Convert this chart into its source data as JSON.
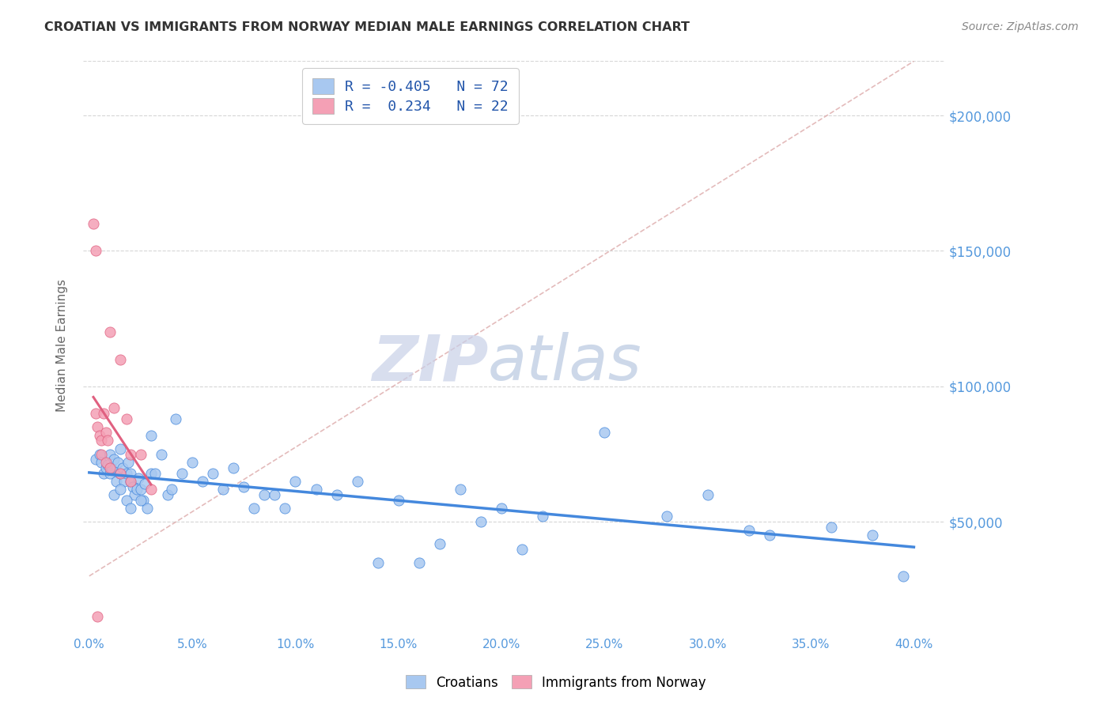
{
  "title": "CROATIAN VS IMMIGRANTS FROM NORWAY MEDIAN MALE EARNINGS CORRELATION CHART",
  "source": "Source: ZipAtlas.com",
  "ylabel": "Median Male Earnings",
  "xlabel_ticks": [
    "0.0%",
    "5.0%",
    "10.0%",
    "15.0%",
    "20.0%",
    "25.0%",
    "30.0%",
    "35.0%",
    "40.0%"
  ],
  "xlabel_vals": [
    0.0,
    5.0,
    10.0,
    15.0,
    20.0,
    25.0,
    30.0,
    35.0,
    40.0
  ],
  "yticks": [
    50000,
    100000,
    150000,
    200000
  ],
  "ytick_labels": [
    "$50,000",
    "$100,000",
    "$150,000",
    "$200,000"
  ],
  "ylim": [
    10000,
    220000
  ],
  "xlim": [
    -0.3,
    41.5
  ],
  "croatians_R": -0.405,
  "croatians_N": 72,
  "norway_R": 0.234,
  "norway_N": 22,
  "scatter_color_croatians": "#a8c8f0",
  "scatter_color_norway": "#f4a0b5",
  "trendline_color_croatians": "#4488dd",
  "trendline_color_norway": "#e06080",
  "ref_line_color": "#ddaaaa",
  "watermark_zip_color": "#c8d0e8",
  "watermark_atlas_color": "#b8c8e0",
  "axis_label_color": "#5599dd",
  "grid_color": "#cccccc",
  "title_color": "#333333",
  "croatians_x": [
    0.3,
    0.5,
    0.6,
    0.7,
    0.8,
    0.9,
    1.0,
    1.0,
    1.1,
    1.2,
    1.3,
    1.4,
    1.5,
    1.5,
    1.6,
    1.7,
    1.8,
    1.9,
    2.0,
    2.0,
    2.1,
    2.2,
    2.3,
    2.4,
    2.5,
    2.6,
    2.7,
    2.8,
    3.0,
    3.0,
    3.2,
    3.5,
    3.8,
    4.0,
    4.2,
    4.5,
    5.0,
    5.5,
    6.0,
    6.5,
    7.0,
    7.5,
    8.0,
    8.5,
    9.0,
    9.5,
    10.0,
    11.0,
    12.0,
    13.0,
    14.0,
    15.0,
    16.0,
    17.0,
    18.0,
    19.0,
    20.0,
    21.0,
    22.0,
    25.0,
    28.0,
    30.0,
    32.0,
    33.0,
    36.0,
    38.0,
    39.5,
    1.2,
    1.5,
    1.8,
    2.0,
    2.5
  ],
  "croatians_y": [
    73000,
    75000,
    72000,
    68000,
    70000,
    71000,
    75000,
    68000,
    70000,
    73000,
    65000,
    72000,
    68000,
    77000,
    70000,
    65000,
    68000,
    72000,
    68000,
    65000,
    63000,
    60000,
    62000,
    66000,
    62000,
    58000,
    64000,
    55000,
    82000,
    68000,
    68000,
    75000,
    60000,
    62000,
    88000,
    68000,
    72000,
    65000,
    68000,
    62000,
    70000,
    63000,
    55000,
    60000,
    60000,
    55000,
    65000,
    62000,
    60000,
    65000,
    35000,
    58000,
    35000,
    42000,
    62000,
    50000,
    55000,
    40000,
    52000,
    83000,
    52000,
    60000,
    47000,
    45000,
    48000,
    45000,
    30000,
    60000,
    62000,
    58000,
    55000,
    58000
  ],
  "norway_x": [
    0.2,
    0.3,
    0.3,
    0.4,
    0.5,
    0.6,
    0.6,
    0.7,
    0.8,
    0.8,
    0.9,
    1.0,
    1.0,
    1.2,
    1.5,
    1.5,
    1.8,
    2.0,
    2.0,
    2.5,
    3.0,
    0.4
  ],
  "norway_y": [
    160000,
    90000,
    150000,
    85000,
    82000,
    80000,
    75000,
    90000,
    83000,
    72000,
    80000,
    120000,
    70000,
    92000,
    110000,
    68000,
    88000,
    75000,
    65000,
    75000,
    62000,
    15000
  ]
}
